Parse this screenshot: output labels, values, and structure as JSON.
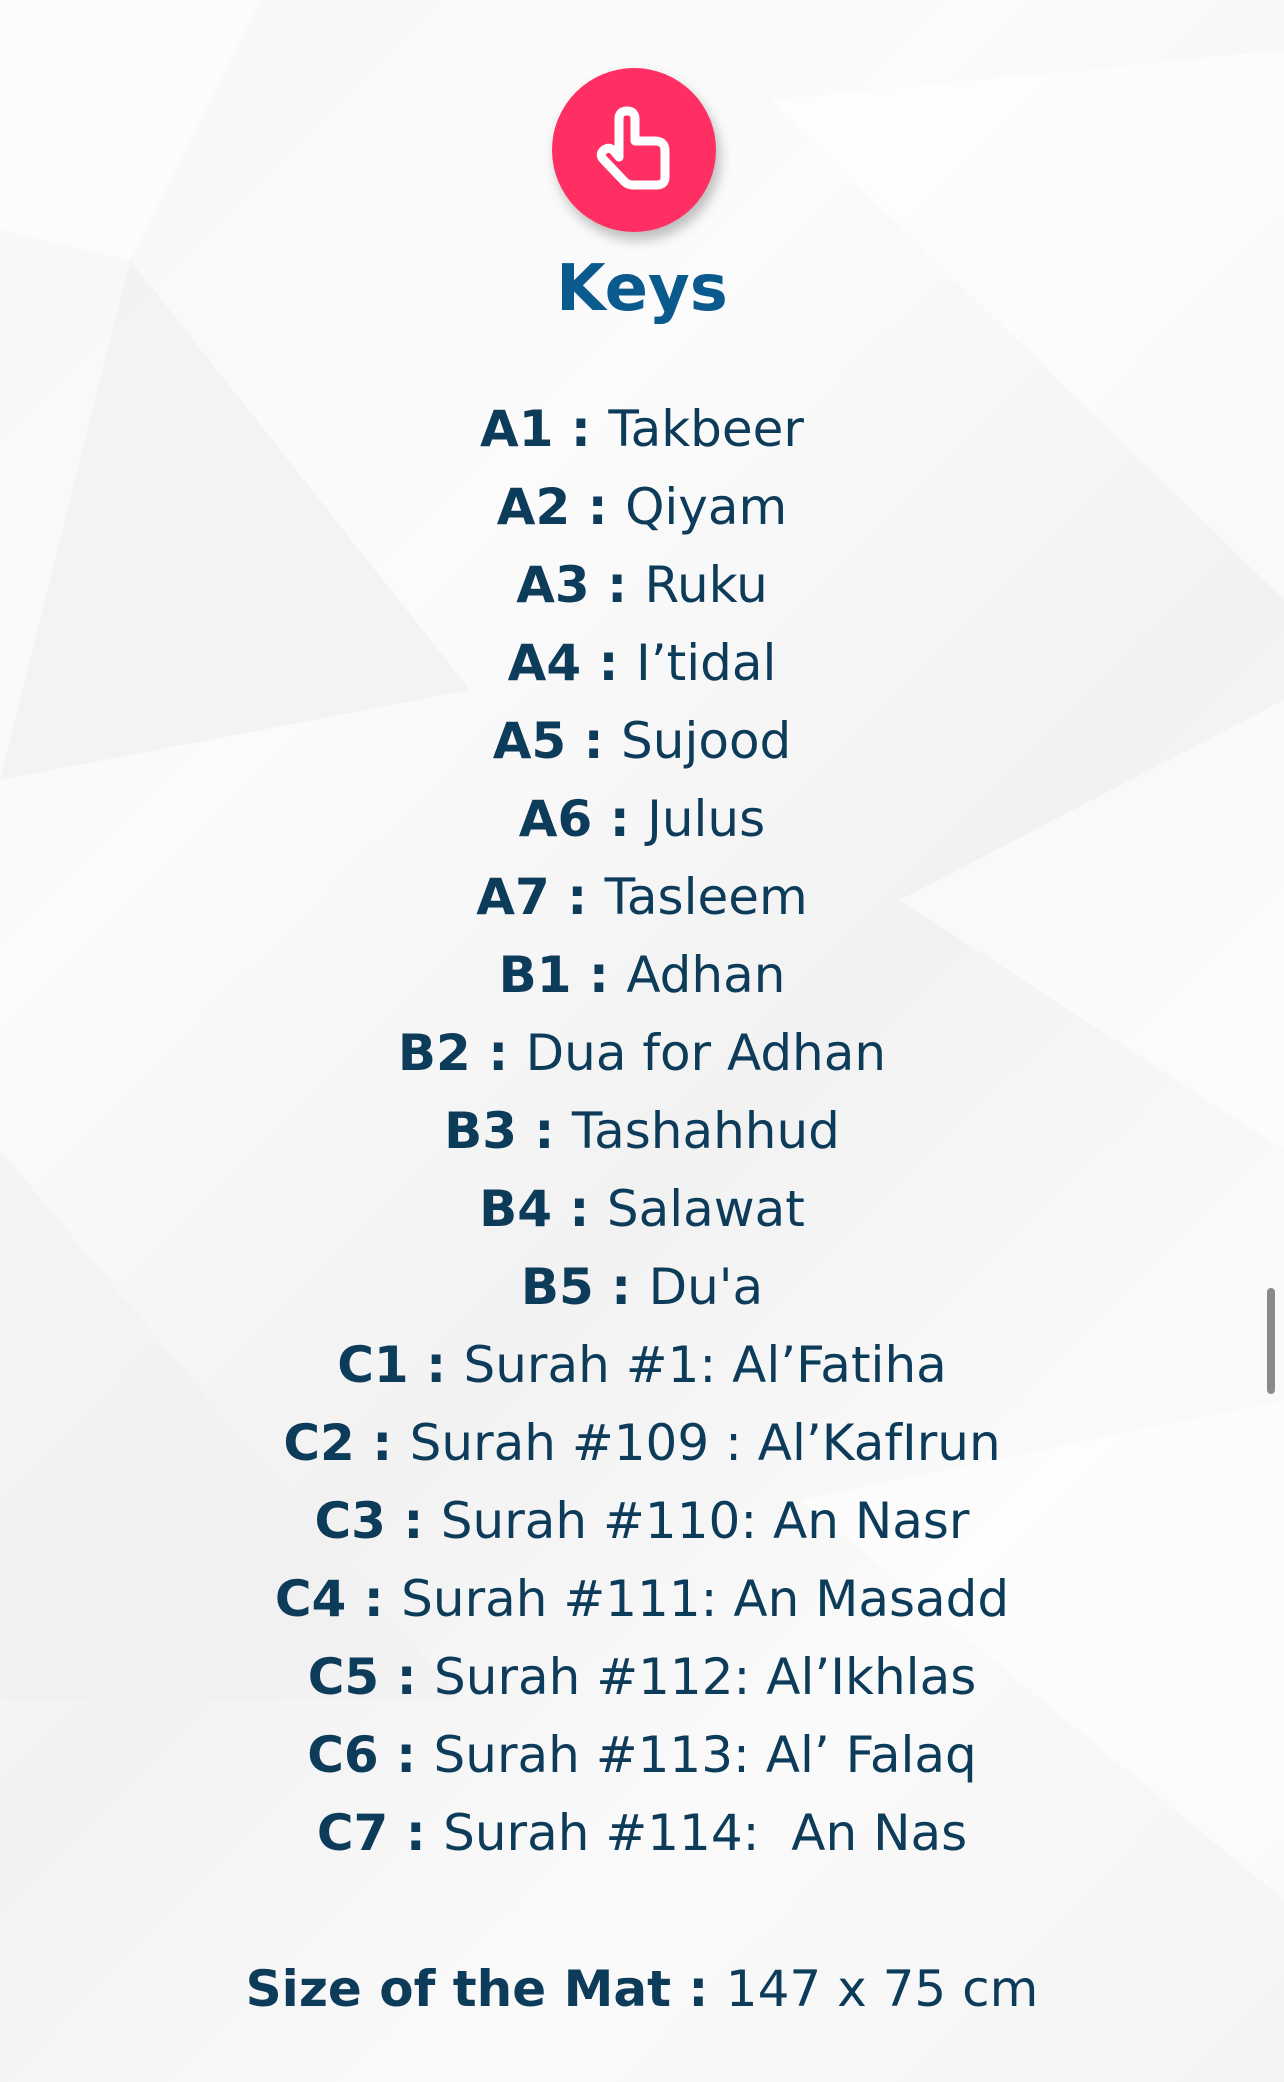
{
  "colors": {
    "accent": "#ff2f63",
    "title": "#0b5a8e",
    "text": "#0d3b5a"
  },
  "header": {
    "icon": "hand-pointer-icon",
    "title": "Keys"
  },
  "keys": [
    {
      "code": "A1",
      "label": "Takbeer"
    },
    {
      "code": "A2",
      "label": "Qiyam"
    },
    {
      "code": "A3",
      "label": "Ruku"
    },
    {
      "code": "A4",
      "label": "I’tidal"
    },
    {
      "code": "A5",
      "label": "Sujood"
    },
    {
      "code": "A6",
      "label": "Julus"
    },
    {
      "code": "A7",
      "label": "Tasleem"
    },
    {
      "code": "B1",
      "label": "Adhan"
    },
    {
      "code": "B2",
      "label": "Dua for Adhan"
    },
    {
      "code": "B3",
      "label": "Tashahhud"
    },
    {
      "code": "B4",
      "label": "Salawat"
    },
    {
      "code": "B5",
      "label": "Du'a"
    },
    {
      "code": "C1",
      "label": "Surah #1: Al’Fatiha"
    },
    {
      "code": "C2",
      "label": "Surah #109 : Al’KafIrun"
    },
    {
      "code": "C3",
      "label": "Surah #110: An Nasr"
    },
    {
      "code": "C4",
      "label": "Surah #111: An Masadd"
    },
    {
      "code": "C5",
      "label": "Surah #112: Al’Ikhlas"
    },
    {
      "code": "C6",
      "label": "Surah #113: Al’ Falaq"
    },
    {
      "code": "C7",
      "label": "Surah #114:  An Nas"
    }
  ],
  "separator": " : ",
  "size": {
    "label": "Size of the Mat",
    "value": "147 x 75 cm"
  }
}
